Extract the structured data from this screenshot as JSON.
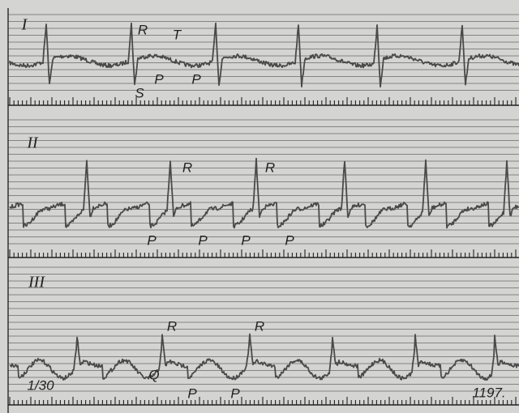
{
  "leads": [
    {
      "label": "I",
      "annotations": [
        "R",
        "T",
        "S",
        "P",
        "P"
      ]
    },
    {
      "label": "II",
      "annotations": [
        "R",
        "R",
        "P",
        "P",
        "P",
        "P"
      ]
    },
    {
      "label": "III",
      "annotations": [
        "R",
        "R",
        "Q",
        "P",
        "P"
      ]
    }
  ],
  "footer": {
    "left": "1/30",
    "right": "1197."
  }
}
